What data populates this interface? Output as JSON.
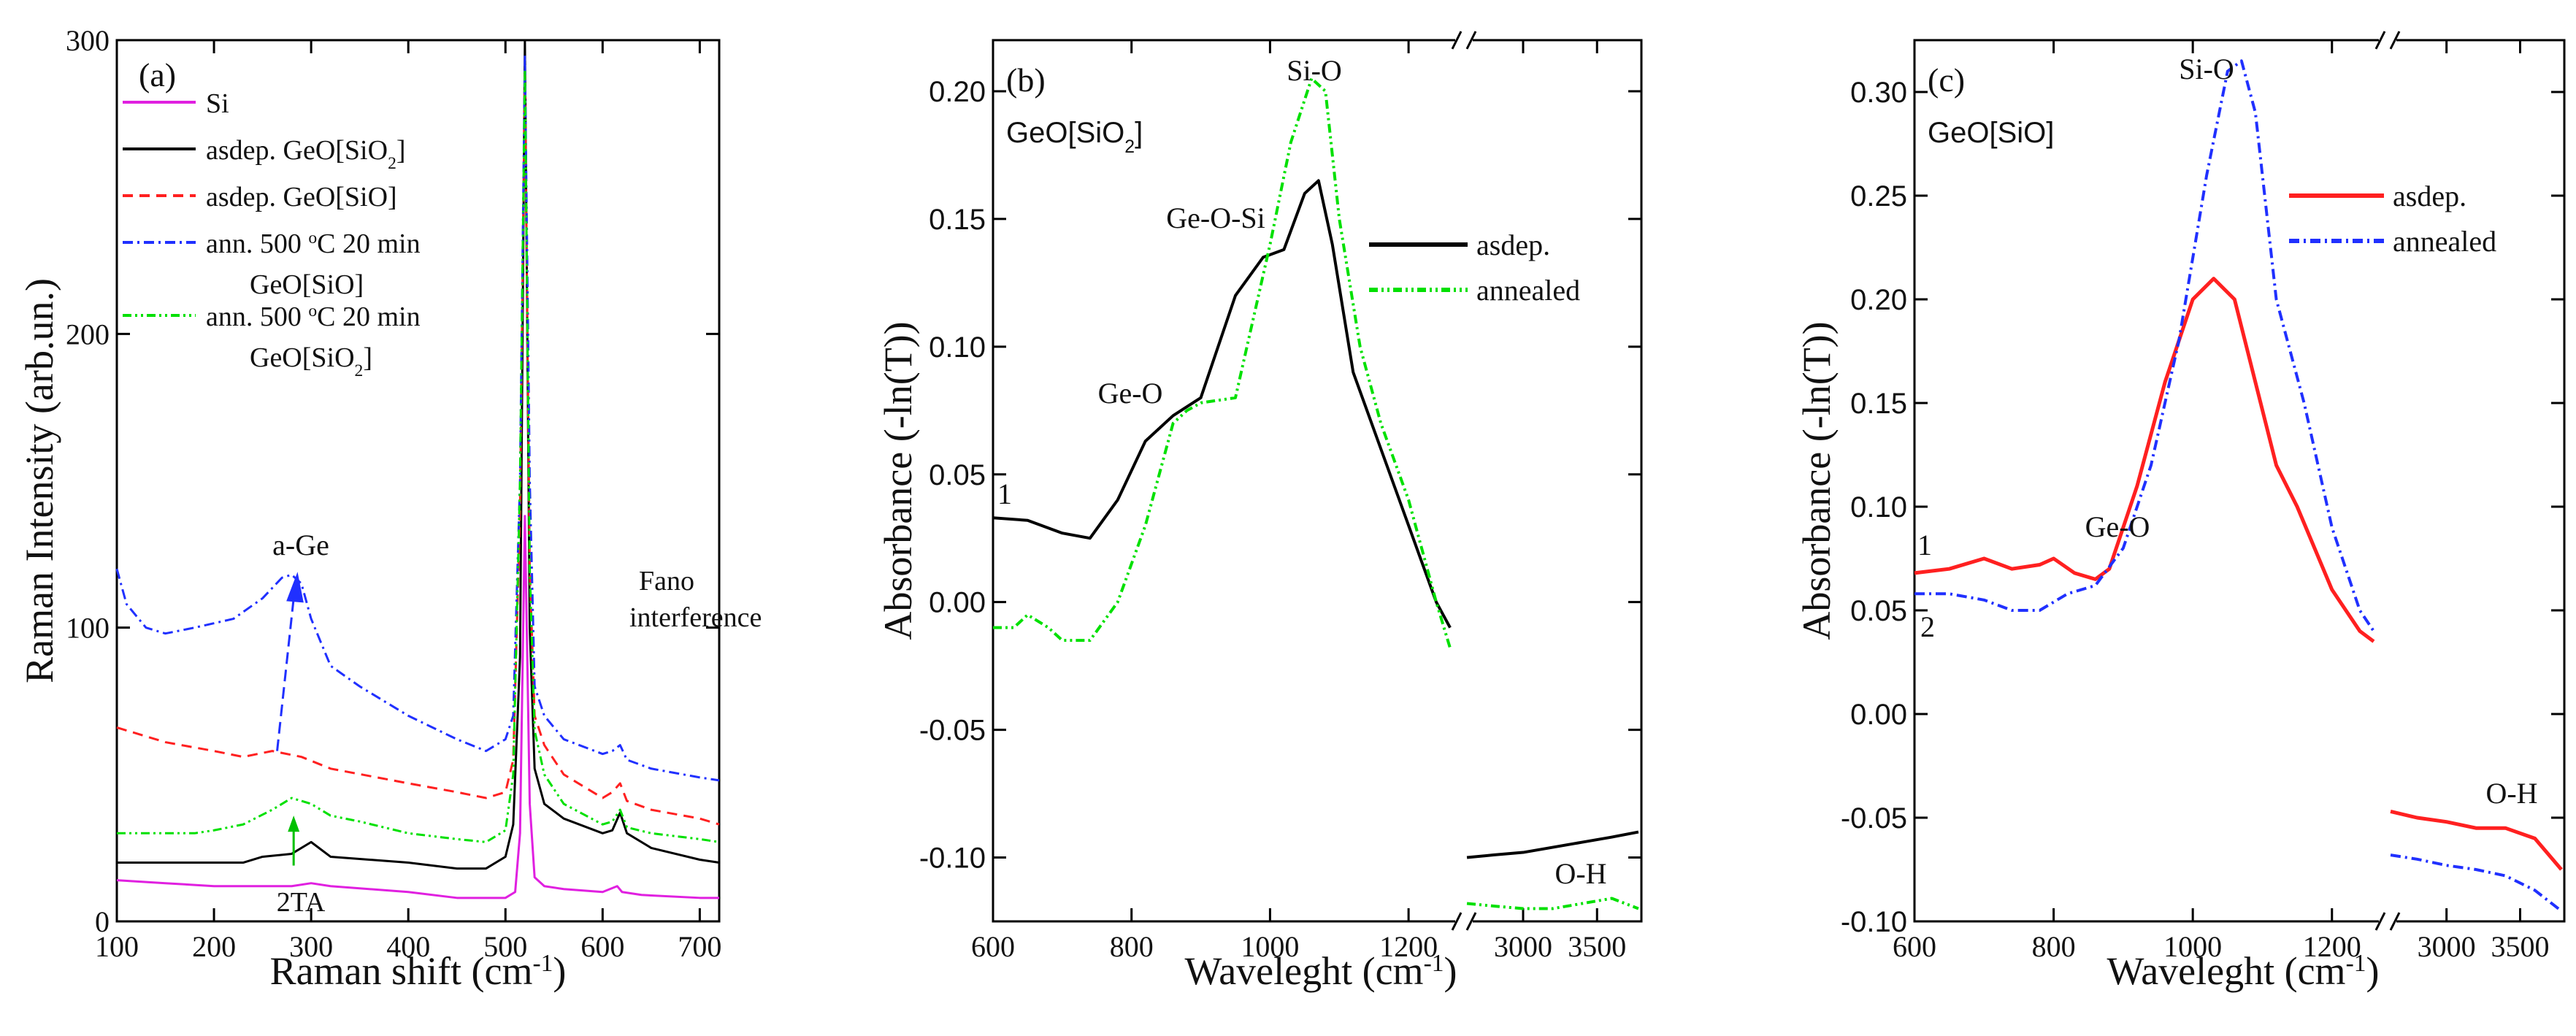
{
  "chart_data": [
    {
      "type": "line",
      "panel_label": "(a)",
      "xlabel_main": "Raman shift (cm",
      "xlabel_sup": "-1",
      "xlabel_tail": ")",
      "ylabel": "Raman Intensity (arb.un.)",
      "xlim": [
        100,
        720
      ],
      "ylim": [
        0,
        300
      ],
      "xticks": [
        "100",
        "200",
        "300",
        "400",
        "500",
        "600",
        "700"
      ],
      "yticks": [
        "0",
        "100",
        "200",
        "300"
      ],
      "legend": [
        {
          "text": "Si",
          "color": "#e020e0",
          "dash": "solid"
        },
        {
          "text": "asdep. GeO[SiO",
          "sub": "2",
          "tail": "]",
          "color": "#000000",
          "dash": "solid"
        },
        {
          "text": "asdep. GeO[SiO]",
          "color": "#ff2020",
          "dash": "dash"
        },
        {
          "text": "ann. 500 ",
          "sup": "o",
          "tail": "C 20 min",
          "line2": "GeO[SiO]",
          "color": "#2030ff",
          "dash": "dashdot"
        },
        {
          "text": "ann. 500 ",
          "sup": "o",
          "tail": "C 20 min",
          "line2": "GeO[SiO",
          "line2_sub": "2",
          "line2_tail": "]",
          "color": "#00e000",
          "dash": "dashdotdot"
        }
      ],
      "annotations": {
        "a_ge": "a-Ge",
        "fano1": "Fano",
        "fano2": "interference",
        "two_ta": "2TA"
      },
      "series": [
        {
          "name": "Si",
          "color": "#e020e0",
          "dash": "solid",
          "x": [
            100,
            150,
            200,
            250,
            280,
            300,
            320,
            400,
            450,
            480,
            500,
            510,
            515,
            520,
            525,
            530,
            540,
            560,
            600,
            615,
            620,
            640,
            700,
            720
          ],
          "y": [
            14,
            13,
            12,
            12,
            12,
            13,
            12,
            10,
            8,
            8,
            8,
            10,
            30,
            138,
            40,
            15,
            12,
            11,
            10,
            12,
            10,
            9,
            8,
            8
          ]
        },
        {
          "name": "asdep. GeO[SiO2]",
          "color": "#000000",
          "dash": "solid",
          "x": [
            100,
            150,
            200,
            230,
            250,
            280,
            300,
            320,
            400,
            450,
            480,
            500,
            508,
            515,
            520,
            525,
            530,
            540,
            560,
            600,
            610,
            618,
            625,
            650,
            700,
            720
          ],
          "y": [
            20,
            20,
            20,
            20,
            22,
            23,
            27,
            22,
            20,
            18,
            18,
            22,
            33,
            90,
            300,
            100,
            52,
            40,
            35,
            30,
            31,
            37,
            30,
            25,
            21,
            20
          ]
        },
        {
          "name": "asdep. GeO[SiO]",
          "color": "#ff2020",
          "dash": "dash",
          "x": [
            100,
            150,
            200,
            230,
            260,
            290,
            320,
            400,
            450,
            480,
            500,
            508,
            515,
            520,
            525,
            530,
            540,
            560,
            600,
            610,
            618,
            625,
            650,
            700,
            720
          ],
          "y": [
            66,
            61,
            58,
            56,
            58,
            56,
            52,
            47,
            44,
            42,
            44,
            55,
            140,
            290,
            120,
            70,
            60,
            50,
            42,
            44,
            47,
            41,
            38,
            35,
            33
          ]
        },
        {
          "name": "ann. 500 C 20 min GeO[SiO]",
          "color": "#2030ff",
          "dash": "dashdot",
          "x": [
            100,
            110,
            130,
            150,
            180,
            220,
            250,
            270,
            280,
            290,
            300,
            320,
            350,
            400,
            450,
            480,
            500,
            508,
            515,
            520,
            525,
            530,
            540,
            560,
            600,
            610,
            618,
            625,
            650,
            700,
            720
          ],
          "y": [
            120,
            108,
            100,
            98,
            100,
            103,
            110,
            117,
            118,
            115,
            103,
            87,
            80,
            70,
            62,
            58,
            62,
            70,
            150,
            295,
            150,
            80,
            70,
            62,
            57,
            58,
            60,
            55,
            52,
            49,
            48
          ]
        },
        {
          "name": "ann. 500 C 20 min GeO[SiO2]",
          "color": "#00e000",
          "dash": "dashdotdot",
          "x": [
            100,
            130,
            150,
            180,
            200,
            230,
            260,
            280,
            300,
            320,
            350,
            400,
            450,
            480,
            500,
            508,
            515,
            520,
            525,
            530,
            540,
            560,
            600,
            610,
            618,
            625,
            650,
            700,
            720
          ],
          "y": [
            30,
            30,
            30,
            30,
            31,
            33,
            38,
            42,
            40,
            36,
            34,
            30,
            28,
            27,
            31,
            50,
            150,
            290,
            120,
            65,
            50,
            40,
            33,
            34,
            38,
            32,
            30,
            28,
            27
          ]
        }
      ]
    },
    {
      "type": "line",
      "panel_label": "(b)",
      "sample_label": "GeO[SiO",
      "sample_sub": "2",
      "sample_tail": "]",
      "xlabel_main": "Waveleght (cm",
      "xlabel_sup": "-1",
      "xlabel_tail": ")",
      "ylabel": "Absorbance (-ln(T))",
      "xlim": [
        600,
        1280
      ],
      "xlim_break": [
        2600,
        3800
      ],
      "ylim": [
        -0.125,
        0.22
      ],
      "xticks": [
        "600",
        "800",
        "1000",
        "1200"
      ],
      "xticks_break": [
        "3000",
        "3500"
      ],
      "yticks": [
        "-0.10",
        "-0.05",
        "0.00",
        "0.05",
        "0.10",
        "0.15",
        "0.20"
      ],
      "legend": [
        {
          "text": "asdep.",
          "color": "#000000",
          "dash": "solid"
        },
        {
          "text": "annealed",
          "color": "#00e000",
          "dash": "dashdotdot"
        }
      ],
      "annotations": {
        "si_o": "Si-O",
        "ge_o_si": "Ge-O-Si",
        "ge_o": "Ge-O",
        "o_h": "O-H",
        "one": "1"
      },
      "series": [
        {
          "name": "asdep.",
          "color": "#000000",
          "dash": "solid",
          "x": [
            600,
            650,
            700,
            740,
            780,
            820,
            860,
            900,
            950,
            990,
            1020,
            1050,
            1070,
            1090,
            1120,
            1160,
            1200,
            1240,
            1260
          ],
          "y": [
            0.033,
            0.032,
            0.027,
            0.025,
            0.04,
            0.063,
            0.073,
            0.08,
            0.12,
            0.135,
            0.138,
            0.16,
            0.165,
            0.14,
            0.09,
            0.06,
            0.03,
            0.0,
            -0.01
          ],
          "x2": [
            2620,
            2800,
            3000,
            3200,
            3400,
            3600,
            3780
          ],
          "y2": [
            -0.1,
            -0.099,
            -0.098,
            -0.096,
            -0.094,
            -0.092,
            -0.09
          ]
        },
        {
          "name": "annealed",
          "color": "#00e000",
          "dash": "dashdotdot",
          "x": [
            600,
            630,
            650,
            680,
            700,
            740,
            780,
            820,
            860,
            880,
            900,
            950,
            1000,
            1030,
            1060,
            1080,
            1100,
            1130,
            1160,
            1200,
            1240,
            1260
          ],
          "y": [
            -0.01,
            -0.01,
            -0.005,
            -0.01,
            -0.015,
            -0.015,
            0.0,
            0.03,
            0.07,
            0.075,
            0.078,
            0.08,
            0.14,
            0.18,
            0.205,
            0.2,
            0.15,
            0.1,
            0.07,
            0.04,
            0.0,
            -0.018
          ],
          "x2": [
            2620,
            2800,
            3000,
            3200,
            3400,
            3600,
            3780
          ],
          "y2": [
            -0.118,
            -0.119,
            -0.12,
            -0.12,
            -0.118,
            -0.116,
            -0.12
          ]
        }
      ]
    },
    {
      "type": "line",
      "panel_label": "(c)",
      "sample_label": "GeO[SiO]",
      "xlabel_main": "Waveleght (cm",
      "xlabel_sup": "-1",
      "xlabel_tail": ")",
      "ylabel": "Absorbance (-ln(T))",
      "xlim": [
        600,
        1280
      ],
      "xlim_break": [
        2600,
        3800
      ],
      "ylim": [
        -0.1,
        0.325
      ],
      "xticks": [
        "600",
        "800",
        "1000",
        "1200"
      ],
      "xticks_break": [
        "3000",
        "3500"
      ],
      "yticks": [
        "-0.10",
        "-0.05",
        "0.00",
        "0.05",
        "0.10",
        "0.15",
        "0.20",
        "0.25",
        "0.30"
      ],
      "legend": [
        {
          "text": "asdep.",
          "color": "#ff2020",
          "dash": "solid"
        },
        {
          "text": "annealed",
          "color": "#2030ff",
          "dash": "dashdot"
        }
      ],
      "annotations": {
        "si_o": "Si-O",
        "ge_o": "Ge-O",
        "o_h": "O-H",
        "one": "1",
        "two": "2"
      },
      "series": [
        {
          "name": "asdep.",
          "color": "#ff2020",
          "dash": "solid",
          "x": [
            600,
            650,
            700,
            740,
            780,
            800,
            830,
            860,
            880,
            920,
            960,
            1000,
            1030,
            1060,
            1090,
            1120,
            1150,
            1200,
            1240,
            1260
          ],
          "y": [
            0.068,
            0.07,
            0.075,
            0.07,
            0.072,
            0.075,
            0.068,
            0.065,
            0.07,
            0.11,
            0.16,
            0.2,
            0.21,
            0.2,
            0.16,
            0.12,
            0.1,
            0.06,
            0.04,
            0.035
          ],
          "x2": [
            2620,
            2800,
            3000,
            3200,
            3400,
            3600,
            3780
          ],
          "y2": [
            -0.047,
            -0.05,
            -0.052,
            -0.055,
            -0.055,
            -0.06,
            -0.075
          ]
        },
        {
          "name": "annealed",
          "color": "#2030ff",
          "dash": "dashdot",
          "x": [
            600,
            650,
            700,
            740,
            780,
            820,
            860,
            900,
            940,
            980,
            1020,
            1050,
            1070,
            1090,
            1120,
            1160,
            1200,
            1240,
            1260
          ],
          "y": [
            0.058,
            0.058,
            0.055,
            0.05,
            0.05,
            0.058,
            0.062,
            0.08,
            0.12,
            0.18,
            0.26,
            0.31,
            0.315,
            0.29,
            0.2,
            0.15,
            0.09,
            0.05,
            0.04
          ],
          "x2": [
            2620,
            2800,
            3000,
            3200,
            3400,
            3600,
            3780
          ],
          "y2": [
            -0.068,
            -0.07,
            -0.073,
            -0.075,
            -0.078,
            -0.085,
            -0.095
          ]
        }
      ]
    }
  ]
}
